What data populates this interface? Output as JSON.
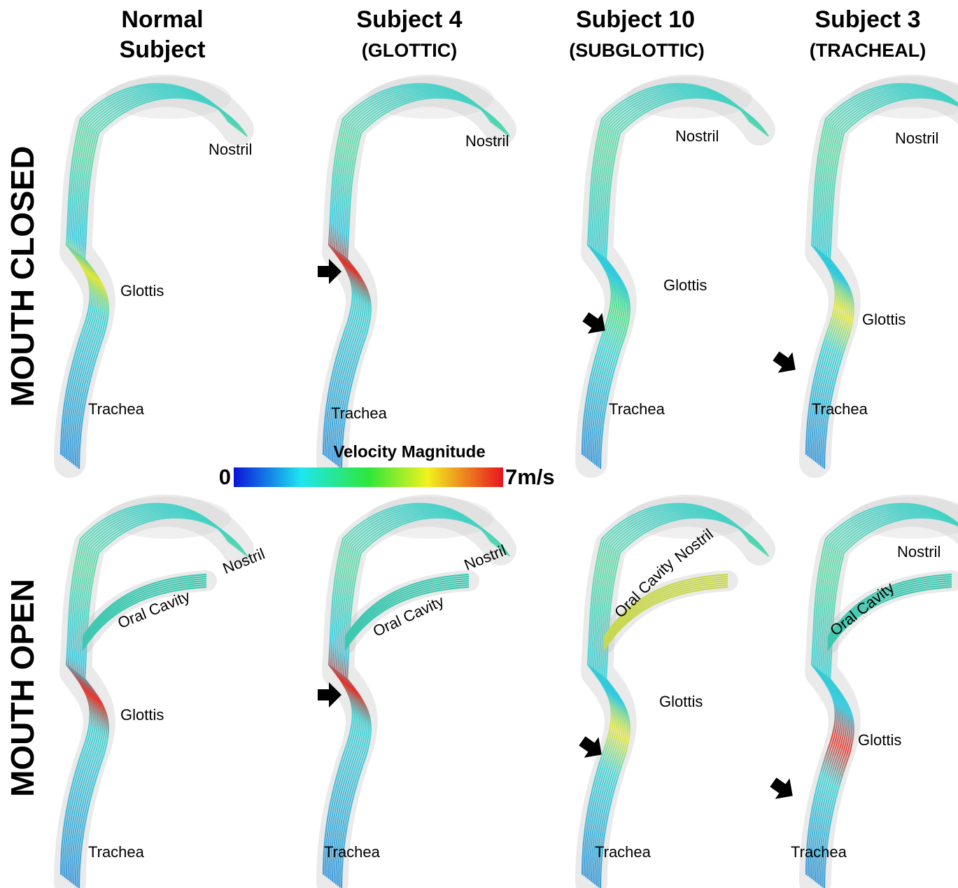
{
  "columns": [
    {
      "line1": "Normal",
      "line2": "Subject"
    },
    {
      "line1": "Subject 4",
      "line2": "(GLOTTIC)"
    },
    {
      "line1": "Subject 10",
      "line2": "(SUBGLOTTIC)"
    },
    {
      "line1": "Subject 3",
      "line2": "(TRACHEAL)"
    }
  ],
  "rows": [
    "MOUTH CLOSED",
    "MOUTH OPEN"
  ],
  "colorbar": {
    "title": "Velocity Magnitude",
    "min_label": "0",
    "max_label": "7m/s"
  },
  "panels": [
    {
      "labels": [
        "Nostril",
        "Glottis",
        "Trachea"
      ]
    },
    {
      "labels": [
        "Nostril",
        "Trachea"
      ]
    },
    {
      "labels": [
        "Nostril",
        "Glottis",
        "Trachea"
      ]
    },
    {
      "labels": [
        "Nostril",
        "Glottis",
        "Trachea"
      ]
    },
    {
      "labels": [
        "Nostril",
        "Oral Cavity",
        "Glottis",
        "Trachea"
      ]
    },
    {
      "labels": [
        "Nostril",
        "Oral Cavity",
        "Trachea"
      ]
    },
    {
      "labels": [
        "Nostril",
        "Oral Cavity",
        "Glottis",
        "Trachea"
      ]
    },
    {
      "labels": [
        "Nostril",
        "Oral Cavity",
        "Glottis",
        "Trachea"
      ]
    }
  ]
}
